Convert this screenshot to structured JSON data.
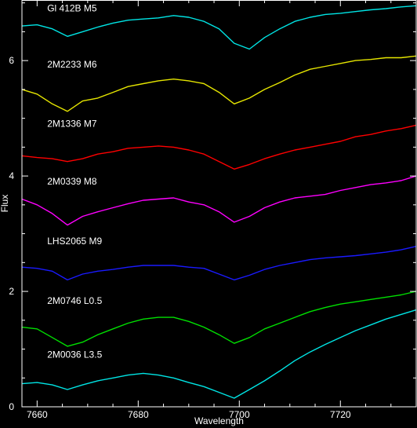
{
  "chart_data": {
    "type": "line",
    "title": "",
    "xlabel": "Wavelength",
    "ylabel": "Flux",
    "xlim": [
      7657,
      7735
    ],
    "ylim": [
      0,
      7.05
    ],
    "x_ticks": [
      7660,
      7680,
      7700,
      7720
    ],
    "y_ticks": [
      0,
      2,
      4,
      6
    ],
    "grid": false,
    "background": "#000000",
    "axis_color": "#ffffff",
    "series": [
      {
        "name": "Gl 412B M5",
        "color": "#00e5e5",
        "label_at": [
          7662,
          6.85
        ],
        "x": [
          7657,
          7660,
          7663,
          7666,
          7669,
          7672,
          7675,
          7678,
          7681,
          7684,
          7687,
          7690,
          7693,
          7696,
          7699,
          7702,
          7705,
          7708,
          7711,
          7714,
          7717,
          7720,
          7723,
          7726,
          7729,
          7732,
          7735
        ],
        "y": [
          6.6,
          6.62,
          6.55,
          6.42,
          6.5,
          6.58,
          6.65,
          6.7,
          6.72,
          6.74,
          6.78,
          6.75,
          6.68,
          6.55,
          6.3,
          6.2,
          6.4,
          6.55,
          6.68,
          6.75,
          6.8,
          6.82,
          6.85,
          6.88,
          6.9,
          6.93,
          6.95
        ]
      },
      {
        "name": "2M2233 M6",
        "color": "#e5e500",
        "label_at": [
          7662,
          5.88
        ],
        "x": [
          7657,
          7660,
          7663,
          7666,
          7669,
          7672,
          7675,
          7678,
          7681,
          7684,
          7687,
          7690,
          7693,
          7696,
          7699,
          7702,
          7705,
          7708,
          7711,
          7714,
          7717,
          7720,
          7723,
          7726,
          7729,
          7732,
          7735
        ],
        "y": [
          5.5,
          5.42,
          5.25,
          5.12,
          5.3,
          5.35,
          5.45,
          5.55,
          5.6,
          5.65,
          5.68,
          5.65,
          5.6,
          5.45,
          5.25,
          5.35,
          5.5,
          5.62,
          5.75,
          5.85,
          5.9,
          5.95,
          6.0,
          6.02,
          6.05,
          6.05,
          6.08
        ]
      },
      {
        "name": "2M1336 M7",
        "color": "#ff0000",
        "label_at": [
          7662,
          4.85
        ],
        "x": [
          7657,
          7660,
          7663,
          7666,
          7669,
          7672,
          7675,
          7678,
          7681,
          7684,
          7687,
          7690,
          7693,
          7696,
          7699,
          7702,
          7705,
          7708,
          7711,
          7714,
          7717,
          7720,
          7723,
          7726,
          7729,
          7732,
          7735
        ],
        "y": [
          4.35,
          4.32,
          4.3,
          4.25,
          4.3,
          4.38,
          4.42,
          4.48,
          4.5,
          4.52,
          4.5,
          4.45,
          4.38,
          4.25,
          4.12,
          4.2,
          4.3,
          4.38,
          4.45,
          4.5,
          4.55,
          4.6,
          4.68,
          4.72,
          4.78,
          4.82,
          4.88
        ]
      },
      {
        "name": "2M0339 M8",
        "color": "#ff00ff",
        "label_at": [
          7662,
          3.85
        ],
        "x": [
          7657,
          7660,
          7663,
          7666,
          7669,
          7672,
          7675,
          7678,
          7681,
          7684,
          7687,
          7690,
          7693,
          7696,
          7699,
          7702,
          7705,
          7708,
          7711,
          7714,
          7717,
          7720,
          7723,
          7726,
          7729,
          7732,
          7735
        ],
        "y": [
          3.6,
          3.5,
          3.35,
          3.15,
          3.3,
          3.38,
          3.45,
          3.52,
          3.58,
          3.6,
          3.62,
          3.55,
          3.5,
          3.38,
          3.2,
          3.3,
          3.45,
          3.55,
          3.62,
          3.65,
          3.68,
          3.75,
          3.8,
          3.85,
          3.88,
          3.92,
          4.0
        ]
      },
      {
        "name": "LHS2065 M9",
        "color": "#1a1aff",
        "label_at": [
          7662,
          2.82
        ],
        "x": [
          7657,
          7660,
          7663,
          7666,
          7669,
          7672,
          7675,
          7678,
          7681,
          7684,
          7687,
          7690,
          7693,
          7696,
          7699,
          7702,
          7705,
          7708,
          7711,
          7714,
          7717,
          7720,
          7723,
          7726,
          7729,
          7732,
          7735
        ],
        "y": [
          2.42,
          2.4,
          2.35,
          2.2,
          2.3,
          2.35,
          2.38,
          2.42,
          2.45,
          2.45,
          2.45,
          2.42,
          2.4,
          2.3,
          2.2,
          2.28,
          2.38,
          2.45,
          2.5,
          2.55,
          2.58,
          2.6,
          2.62,
          2.65,
          2.68,
          2.72,
          2.78
        ]
      },
      {
        "name": "2M0746 L0.5",
        "color": "#00e000",
        "label_at": [
          7662,
          1.78
        ],
        "x": [
          7657,
          7660,
          7663,
          7666,
          7669,
          7672,
          7675,
          7678,
          7681,
          7684,
          7687,
          7690,
          7693,
          7696,
          7699,
          7702,
          7705,
          7708,
          7711,
          7714,
          7717,
          7720,
          7723,
          7726,
          7729,
          7732,
          7735
        ],
        "y": [
          1.38,
          1.35,
          1.2,
          1.05,
          1.12,
          1.25,
          1.35,
          1.45,
          1.52,
          1.55,
          1.55,
          1.48,
          1.38,
          1.25,
          1.1,
          1.2,
          1.35,
          1.45,
          1.55,
          1.65,
          1.72,
          1.78,
          1.82,
          1.86,
          1.9,
          1.94,
          2.0
        ]
      },
      {
        "name": "2M0036 L3.5",
        "color": "#00e5e5",
        "label_at": [
          7662,
          0.85
        ],
        "x": [
          7657,
          7660,
          7663,
          7666,
          7669,
          7672,
          7675,
          7678,
          7681,
          7684,
          7687,
          7690,
          7693,
          7696,
          7699,
          7702,
          7705,
          7708,
          7711,
          7714,
          7717,
          7720,
          7723,
          7726,
          7729,
          7732,
          7735
        ],
        "y": [
          0.4,
          0.42,
          0.38,
          0.3,
          0.38,
          0.45,
          0.5,
          0.55,
          0.58,
          0.55,
          0.5,
          0.42,
          0.35,
          0.25,
          0.15,
          0.3,
          0.45,
          0.62,
          0.8,
          0.95,
          1.08,
          1.2,
          1.32,
          1.42,
          1.52,
          1.6,
          1.68
        ]
      }
    ]
  }
}
